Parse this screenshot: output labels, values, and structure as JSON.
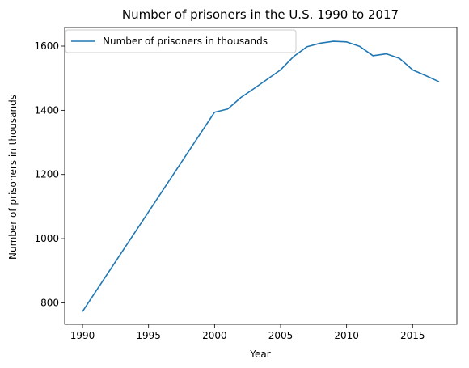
{
  "chart_data": {
    "type": "line",
    "title": "Number of prisoners in the U.S. 1990 to 2017",
    "xlabel": "Year",
    "ylabel": "Number of prisoners in thousands",
    "xlim": [
      1988.65,
      2018.35
    ],
    "ylim": [
      733,
      1658
    ],
    "xticks": [
      1990,
      1995,
      2000,
      2005,
      2010,
      2015
    ],
    "yticks": [
      800,
      1000,
      1200,
      1400,
      1600
    ],
    "grid": false,
    "legend_position": "upper-left",
    "series": [
      {
        "name": "Number of prisoners in thousands",
        "color": "#1f77b4",
        "x": [
          1990,
          2000,
          2001,
          2002,
          2003,
          2004,
          2005,
          2006,
          2007,
          2008,
          2009,
          2010,
          2011,
          2012,
          2013,
          2014,
          2015,
          2016,
          2017
        ],
        "y": [
          773,
          1394,
          1404,
          1440,
          1468,
          1497,
          1526,
          1568,
          1598,
          1609,
          1615,
          1613,
          1599,
          1570,
          1576,
          1562,
          1526,
          1508,
          1489
        ]
      }
    ]
  }
}
